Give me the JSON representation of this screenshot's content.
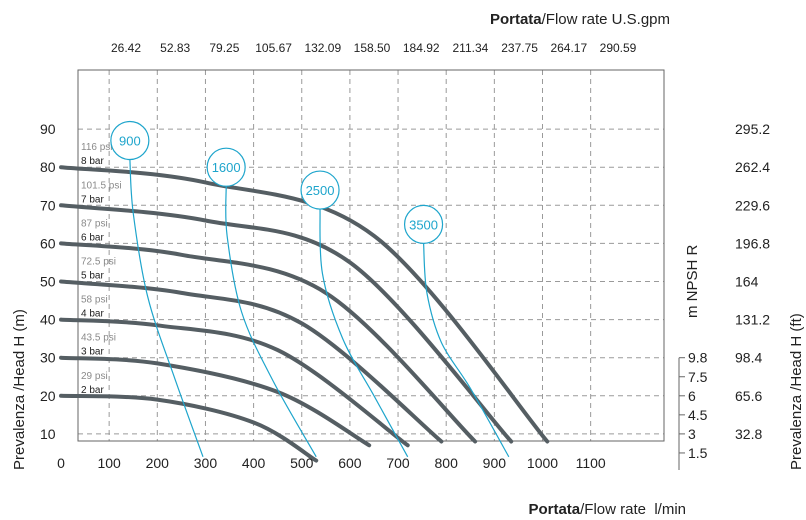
{
  "chart_data": {
    "type": "line",
    "title": "",
    "x_bottom": {
      "label_bold": "Portata",
      "label_rest": "/Flow rate  l/min",
      "range": [
        0,
        1200
      ],
      "ticks": [
        0,
        100,
        200,
        300,
        400,
        500,
        600,
        700,
        800,
        900,
        1000,
        1100
      ]
    },
    "x_top": {
      "label_bold": "Portata",
      "label_rest": "/Flow rate U.S.gpm",
      "ticks": [
        "26.42",
        "52.83",
        "79.25",
        "105.67",
        "132.09",
        "158.50",
        "184.92",
        "211.34",
        "237.75",
        "264.17",
        "290.59"
      ]
    },
    "y_left": {
      "label": "Prevalenza /Head H (m)",
      "range": [
        0,
        100
      ],
      "ticks": [
        10,
        20,
        30,
        40,
        50,
        60,
        70,
        80,
        90
      ]
    },
    "y_right": {
      "label": "Prevalenza /Head H (ft)",
      "ticks": [
        "32.8",
        "65.6",
        "98.4",
        "131.2",
        "164",
        "196.8",
        "229.6",
        "262.4",
        "295.2"
      ]
    },
    "npsh_axis": {
      "label": "m  NPSH R",
      "ticks": [
        {
          "label": "9.8",
          "head_m": 30
        },
        {
          "label": "7.5",
          "head_m": 25
        },
        {
          "label": "6",
          "head_m": 20
        },
        {
          "label": "4.5",
          "head_m": 15
        },
        {
          "label": "3",
          "head_m": 10
        },
        {
          "label": "1.5",
          "head_m": 5
        }
      ]
    },
    "grid": true,
    "pressure_curves": [
      {
        "bar": "2 bar",
        "psi": "29 psi",
        "points": [
          [
            0,
            20
          ],
          [
            200,
            19
          ],
          [
            400,
            13
          ],
          [
            530,
            3
          ]
        ]
      },
      {
        "bar": "3 bar",
        "psi": "43.5 psi",
        "points": [
          [
            0,
            30
          ],
          [
            200,
            28.5
          ],
          [
            450,
            21
          ],
          [
            640,
            7
          ]
        ]
      },
      {
        "bar": "4 bar",
        "psi": "58 psi",
        "points": [
          [
            0,
            40
          ],
          [
            200,
            38.5
          ],
          [
            450,
            32
          ],
          [
            720,
            7
          ]
        ]
      },
      {
        "bar": "5 bar",
        "psi": "72.5 psi",
        "points": [
          [
            0,
            50
          ],
          [
            250,
            47
          ],
          [
            500,
            39
          ],
          [
            790,
            8
          ]
        ]
      },
      {
        "bar": "6 bar",
        "psi": "87 psi",
        "points": [
          [
            0,
            60
          ],
          [
            250,
            57
          ],
          [
            550,
            47
          ],
          [
            860,
            8
          ]
        ]
      },
      {
        "bar": "7 bar",
        "psi": "101.5 psi",
        "points": [
          [
            0,
            70
          ],
          [
            300,
            66
          ],
          [
            600,
            55
          ],
          [
            935,
            8
          ]
        ]
      },
      {
        "bar": "8 bar",
        "psi": "116 psi",
        "points": [
          [
            0,
            80
          ],
          [
            300,
            76
          ],
          [
            650,
            62
          ],
          [
            1010,
            8
          ]
        ]
      }
    ],
    "rpm_curves": [
      {
        "label": "900",
        "bubble": [
          143,
          87
        ],
        "points": [
          [
            143,
            82
          ],
          [
            150,
            68
          ],
          [
            180,
            46
          ],
          [
            235,
            25
          ],
          [
            295,
            4
          ]
        ]
      },
      {
        "label": "1600",
        "bubble": [
          343,
          80
        ],
        "points": [
          [
            343,
            75
          ],
          [
            345,
            62
          ],
          [
            375,
            42
          ],
          [
            440,
            24
          ],
          [
            530,
            4
          ]
        ]
      },
      {
        "label": "2500",
        "bubble": [
          538,
          74
        ],
        "points": [
          [
            538,
            69
          ],
          [
            543,
            52
          ],
          [
            585,
            35
          ],
          [
            650,
            20
          ],
          [
            720,
            4
          ]
        ]
      },
      {
        "label": "3500",
        "bubble": [
          753,
          65
        ],
        "points": [
          [
            753,
            60
          ],
          [
            760,
            47
          ],
          [
            790,
            34
          ],
          [
            850,
            22
          ],
          [
            930,
            4
          ]
        ]
      }
    ],
    "colors": {
      "pressure_line": "#555e63",
      "rpm_line": "#1ea5cc",
      "grid": "#9a9a9a",
      "frame": "#666666"
    }
  }
}
